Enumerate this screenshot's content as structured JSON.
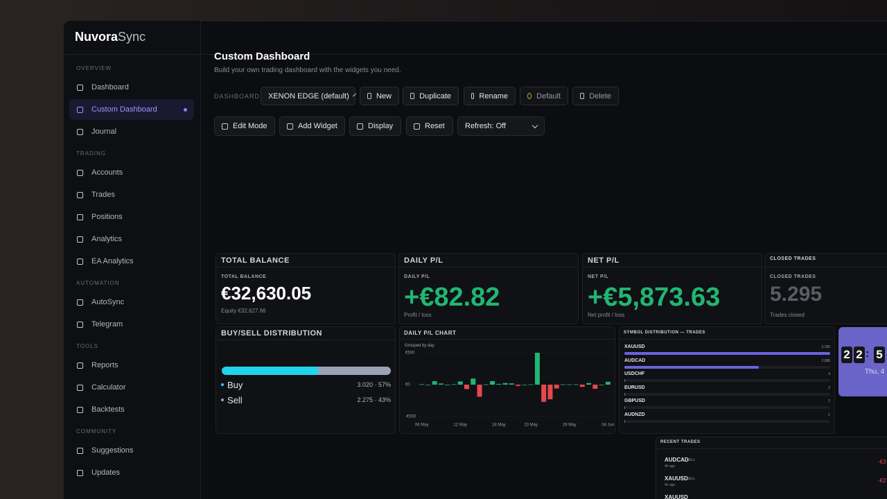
{
  "brand": {
    "name_a": "Nuvora",
    "name_b": "Sync"
  },
  "nav": [
    {
      "title": "OVERVIEW",
      "items": [
        {
          "label": "Dashboard"
        },
        {
          "label": "Custom Dashboard",
          "active": true
        },
        {
          "label": "Journal"
        }
      ]
    },
    {
      "title": "TRADING",
      "items": [
        {
          "label": "Accounts"
        },
        {
          "label": "Trades"
        },
        {
          "label": "Positions"
        },
        {
          "label": "Analytics"
        },
        {
          "label": "EA Analytics"
        }
      ]
    },
    {
      "title": "AUTOMATION",
      "items": [
        {
          "label": "AutoSync"
        },
        {
          "label": "Telegram"
        }
      ]
    },
    {
      "title": "TOOLS",
      "items": [
        {
          "label": "Reports"
        },
        {
          "label": "Calculator"
        },
        {
          "label": "Backtests"
        }
      ]
    },
    {
      "title": "COMMUNITY",
      "items": [
        {
          "label": "Suggestions"
        },
        {
          "label": "Updates"
        }
      ]
    }
  ],
  "header": {
    "title": "Custom Dashboard",
    "subtitle": "Build your own trading dashboard with the widgets you need."
  },
  "toolbar": {
    "label": "DASHBOARD",
    "select": "XENON EDGE (default)",
    "buttons": [
      "New",
      "Duplicate",
      "Rename",
      "Default",
      "Delete"
    ]
  },
  "toolbar2": {
    "buttons": [
      "Edit Mode",
      "Add Widget",
      "Display",
      "Reset"
    ],
    "refresh": "Refresh: Off"
  },
  "stats": [
    {
      "header": "TOTAL BALANCE",
      "label": "TOTAL BALANCE",
      "value": "€32,630.05",
      "sub": "Equity €32,627.66",
      "color": "#ffffff"
    },
    {
      "header": "DAILY P/L",
      "label": "DAILY P/L",
      "value": "+€82.82",
      "sub": "Profit / loss",
      "color": "#22b573"
    },
    {
      "header": "NET P/L",
      "label": "NET P/L",
      "value": "+€5,873.63",
      "sub": "Net profit / loss",
      "color": "#22b573"
    },
    {
      "header": "CLOSED TRADES",
      "label": "CLOSED TRADES",
      "value": "5.295",
      "sub": "Trades closed",
      "color": "#5a5d66"
    }
  ],
  "buysell": {
    "title": "BUY/SELL DISTRIBUTION",
    "buy": {
      "label": "Buy",
      "value": 57,
      "value_label": "3.020 · 57%",
      "color": "#22d3ee"
    },
    "sell": {
      "label": "Sell",
      "value": 43,
      "value_label": "2.275 · 43%",
      "color": "#9aa3b5"
    }
  },
  "chart_data": {
    "type": "bar",
    "title": "DAILY P/L CHART",
    "subtitle": "Grouped by day",
    "categories": [
      "06 May",
      null,
      null,
      null,
      null,
      null,
      "12 May",
      null,
      null,
      null,
      null,
      null,
      "18 May",
      null,
      null,
      null,
      null,
      "23 May",
      null,
      null,
      null,
      null,
      null,
      "29 May",
      null,
      null,
      null,
      null,
      null,
      "04 Jun"
    ],
    "values": [
      8,
      0,
      55,
      18,
      0,
      8,
      50,
      -70,
      95,
      -190,
      5,
      55,
      12,
      25,
      20,
      -20,
      0,
      5,
      500,
      -270,
      -230,
      -60,
      5,
      5,
      5,
      -35,
      25,
      -65,
      0,
      45
    ],
    "positive_color": "#22b573",
    "negative_color": "#e5484d",
    "ylim": [
      -500,
      500
    ],
    "yticks": [
      {
        "value": 500,
        "label": "€500"
      },
      {
        "value": 0,
        "label": "€0"
      },
      {
        "value": -500,
        "label": "-€500"
      }
    ]
  },
  "symbols": {
    "title": "SYMBOL DISTRIBUTION — TRADES",
    "color": "#6c63e0",
    "items": [
      {
        "name": "XAUUSD",
        "value": 3195,
        "value_label": "3.195"
      },
      {
        "name": "AUDCAD",
        "value": 2088,
        "value_label": "2.088"
      },
      {
        "name": "USDCHF",
        "value": 4
      },
      {
        "name": "EURUSD",
        "value": 2
      },
      {
        "name": "GBPUSD",
        "value": 2
      },
      {
        "name": "AUDNZD",
        "value": 1
      }
    ]
  },
  "clock": {
    "digits": [
      "2",
      "2",
      ":",
      "5"
    ],
    "date": "Thu, 4"
  },
  "recent": {
    "title": "RECENT TRADES",
    "rows": [
      {
        "symbol": "AUDCAD",
        "side": "SELL",
        "time": "4h ago",
        "pnl": "-€3"
      },
      {
        "symbol": "XAUUSD",
        "side": "SELL",
        "time": "4h ago",
        "pnl": "-€2"
      },
      {
        "symbol": "XAUUSD"
      }
    ]
  }
}
